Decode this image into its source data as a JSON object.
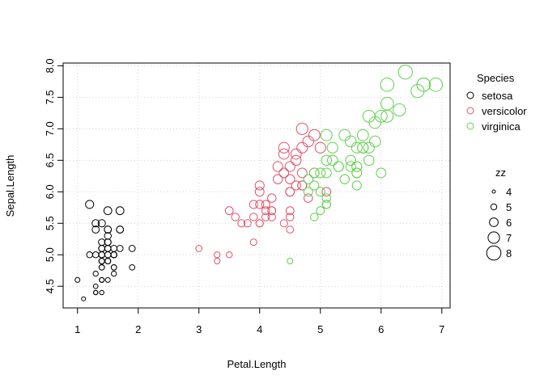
{
  "chart_data": {
    "type": "scatter",
    "xlabel": "Petal.Length",
    "ylabel": "Sepal.Length",
    "xlim": [
      0.764,
      7.136
    ],
    "ylim": [
      4.156,
      8.044
    ],
    "xticks": [
      1,
      2,
      3,
      4,
      5,
      6,
      7
    ],
    "yticks": [
      4.5,
      5.0,
      5.5,
      6.0,
      6.5,
      7.0,
      7.5,
      8.0
    ],
    "ytick_labels": [
      "4.5",
      "5.0",
      "5.5",
      "6.0",
      "6.5",
      "7.0",
      "7.5",
      "8.0"
    ],
    "grid": true,
    "legend_color": {
      "title": "Species",
      "placement": "right",
      "entries": [
        "setosa",
        "versicolor",
        "virginica"
      ]
    },
    "legend_size": {
      "title": "zz",
      "placement": "right",
      "values": [
        4,
        5,
        6,
        7,
        8
      ]
    },
    "series": [
      {
        "name": "setosa",
        "color": "#000000",
        "x": [
          1.4,
          1.4,
          1.3,
          1.5,
          1.4,
          1.7,
          1.4,
          1.5,
          1.4,
          1.5,
          1.5,
          1.6,
          1.4,
          1.1,
          1.2,
          1.5,
          1.3,
          1.4,
          1.7,
          1.5,
          1.7,
          1.5,
          1.0,
          1.7,
          1.9,
          1.6,
          1.6,
          1.5,
          1.4,
          1.6,
          1.6,
          1.5,
          1.5,
          1.4,
          1.5,
          1.2,
          1.3,
          1.4,
          1.3,
          1.5,
          1.3,
          1.3,
          1.3,
          1.6,
          1.9,
          1.4,
          1.6,
          1.4,
          1.5,
          1.4
        ],
        "y": [
          5.1,
          4.9,
          4.7,
          4.6,
          5.0,
          5.4,
          4.6,
          5.0,
          4.4,
          4.9,
          5.4,
          4.8,
          4.8,
          4.3,
          5.8,
          5.7,
          5.4,
          5.1,
          5.7,
          5.1,
          5.4,
          5.1,
          4.6,
          5.1,
          4.8,
          5.0,
          5.0,
          5.2,
          5.2,
          4.7,
          4.8,
          5.4,
          5.2,
          5.5,
          4.9,
          5.0,
          5.5,
          4.9,
          4.4,
          5.1,
          5.0,
          4.5,
          4.4,
          5.0,
          5.1,
          4.8,
          5.1,
          4.6,
          5.3,
          5.0
        ]
      },
      {
        "name": "versicolor",
        "color": "#DF536B",
        "x": [
          4.7,
          4.5,
          4.9,
          4.0,
          4.6,
          4.5,
          4.7,
          3.3,
          4.6,
          3.9,
          3.5,
          4.2,
          4.0,
          4.7,
          3.6,
          4.4,
          4.5,
          4.1,
          4.5,
          3.9,
          4.8,
          4.0,
          4.9,
          4.7,
          4.3,
          4.4,
          4.8,
          5.0,
          4.5,
          3.5,
          3.8,
          3.7,
          3.9,
          5.1,
          4.5,
          4.5,
          4.7,
          4.4,
          4.1,
          4.0,
          4.4,
          4.6,
          4.0,
          3.3,
          4.2,
          4.2,
          4.2,
          4.3,
          3.0,
          4.1
        ],
        "y": [
          7.0,
          6.4,
          6.9,
          5.5,
          6.5,
          5.7,
          6.3,
          4.9,
          6.6,
          5.2,
          5.0,
          5.9,
          6.0,
          6.1,
          5.6,
          6.7,
          5.6,
          5.8,
          6.2,
          5.6,
          5.9,
          6.1,
          6.3,
          6.1,
          6.4,
          6.6,
          6.8,
          6.7,
          6.0,
          5.7,
          5.5,
          5.5,
          5.8,
          6.0,
          5.4,
          6.0,
          6.7,
          6.3,
          5.6,
          5.5,
          5.5,
          6.1,
          5.8,
          5.0,
          5.6,
          5.7,
          5.7,
          6.2,
          5.1,
          5.7
        ]
      },
      {
        "name": "virginica",
        "color": "#61D04F",
        "x": [
          6.0,
          5.1,
          5.9,
          5.6,
          5.8,
          6.6,
          4.5,
          6.3,
          5.8,
          6.1,
          5.1,
          5.3,
          5.5,
          5.0,
          5.1,
          5.3,
          5.5,
          6.7,
          6.9,
          5.0,
          5.7,
          4.9,
          6.7,
          4.9,
          5.7,
          6.0,
          4.8,
          4.9,
          5.6,
          5.8,
          6.1,
          6.4,
          5.6,
          5.1,
          5.6,
          6.1,
          5.6,
          5.5,
          4.8,
          5.4,
          5.6,
          5.1,
          5.1,
          5.9,
          5.7,
          5.2,
          5.0,
          5.2,
          5.4,
          5.1
        ],
        "y": [
          6.3,
          5.8,
          7.1,
          6.3,
          6.5,
          7.6,
          4.9,
          7.3,
          6.7,
          7.2,
          6.5,
          6.4,
          6.8,
          5.7,
          5.8,
          6.4,
          6.5,
          7.7,
          7.7,
          6.0,
          6.9,
          5.6,
          7.7,
          6.3,
          6.7,
          7.2,
          6.2,
          6.1,
          6.4,
          7.2,
          7.4,
          7.9,
          6.4,
          6.3,
          6.1,
          7.7,
          6.3,
          6.4,
          6.0,
          6.9,
          6.7,
          6.9,
          5.8,
          6.8,
          6.7,
          6.7,
          6.3,
          6.5,
          6.2,
          5.9
        ]
      }
    ]
  }
}
